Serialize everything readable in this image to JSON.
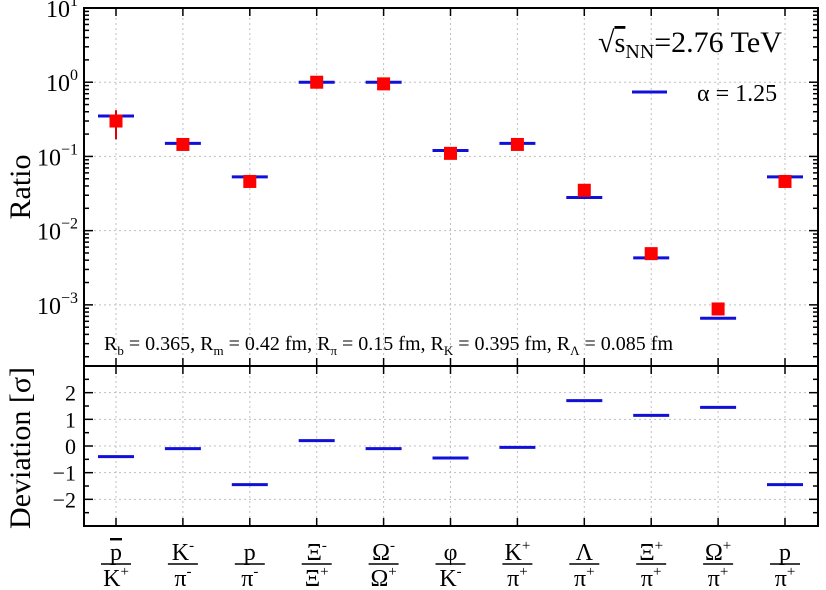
{
  "chart_data": [
    {
      "type": "scatter",
      "panel": "ratio",
      "yscale": "log",
      "ylabel": "Ratio",
      "ylim": [
        0.00015,
        10
      ],
      "yticks": [
        {
          "value": 0.001,
          "base": "10",
          "exp": "−3"
        },
        {
          "value": 0.01,
          "base": "10",
          "exp": "−2"
        },
        {
          "value": 0.1,
          "base": "10",
          "exp": "−1"
        },
        {
          "value": 1,
          "base": "10",
          "exp": "0"
        },
        {
          "value": 10,
          "base": "10",
          "exp": "1"
        }
      ],
      "energy_label": {
        "sqrt": "√",
        "s": "s",
        "sub": "NN",
        "value": "=2.76 TeV"
      },
      "legend": {
        "label": "α = 1.25",
        "color": "#1010d8"
      },
      "parameters": [
        {
          "name": "R",
          "sub": "b",
          "value": " =  0.365, "
        },
        {
          "name": "R",
          "sub": "m",
          "value": " =  0.42 fm, "
        },
        {
          "name": "R",
          "sub": "π",
          "value": " =  0.15 fm, "
        },
        {
          "name": "R",
          "sub": "K",
          "value": " =  0.395 fm, "
        },
        {
          "name": "R",
          "sub": "Λ",
          "value": " =  0.085 fm"
        }
      ],
      "series": [
        {
          "name": "data",
          "color": "#ff0000",
          "values": [
            0.3,
            0.145,
            0.046,
            1.0,
            0.95,
            0.11,
            0.145,
            0.035,
            0.0049,
            0.00088,
            0.046
          ],
          "err_low": [
            0.17,
            0.13,
            0.042,
            0.9,
            0.85,
            0.1,
            0.13,
            0.032,
            0.0045,
            0.0008,
            0.042
          ],
          "err_high": [
            0.42,
            0.16,
            0.05,
            1.1,
            1.05,
            0.12,
            0.16,
            0.038,
            0.0053,
            0.00096,
            0.05
          ]
        },
        {
          "name": "α = 1.25",
          "color": "#1010d8",
          "values": [
            0.35,
            0.15,
            0.053,
            1.0,
            1.0,
            0.12,
            0.15,
            0.028,
            0.0043,
            0.00066,
            0.053
          ]
        }
      ]
    },
    {
      "type": "scatter",
      "panel": "deviation",
      "ylabel": "Deviation [σ]",
      "ylim": [
        -3,
        3
      ],
      "yticks": [
        {
          "value": 2,
          "label": "2"
        },
        {
          "value": 1,
          "label": "1"
        },
        {
          "value": 0,
          "label": "0"
        },
        {
          "value": -1,
          "label": "−1"
        },
        {
          "value": -2,
          "label": "−2"
        }
      ],
      "series": [
        {
          "name": "deviation",
          "color": "#1010d8",
          "values": [
            -0.4,
            -0.1,
            -1.45,
            0.2,
            -0.1,
            -0.45,
            -0.05,
            1.7,
            1.15,
            1.45,
            -1.45
          ]
        }
      ]
    }
  ],
  "categories": [
    {
      "num": "p",
      "num_bar": true,
      "num_sup": "",
      "den": "K",
      "den_sup": "+"
    },
    {
      "num": "K",
      "num_bar": false,
      "num_sup": "-",
      "den": "π",
      "den_sup": "-"
    },
    {
      "num": "p",
      "num_bar": false,
      "num_sup": "",
      "den": "π",
      "den_sup": "-"
    },
    {
      "num": "Ξ",
      "num_bar": false,
      "num_sup": "-",
      "den": "Ξ",
      "den_sup": "+"
    },
    {
      "num": "Ω",
      "num_bar": false,
      "num_sup": "-",
      "den": "Ω",
      "den_sup": "+"
    },
    {
      "num": "φ",
      "num_bar": false,
      "num_sup": "",
      "den": "K",
      "den_sup": "-"
    },
    {
      "num": "K",
      "num_bar": false,
      "num_sup": "+",
      "den": "π",
      "den_sup": "+"
    },
    {
      "num": "Λ",
      "num_bar": false,
      "num_sup": "",
      "den": "π",
      "den_sup": "+"
    },
    {
      "num": "Ξ",
      "num_bar": false,
      "num_sup": "+",
      "den": "π",
      "den_sup": "+"
    },
    {
      "num": "Ω",
      "num_bar": false,
      "num_sup": "+",
      "den": "π",
      "den_sup": "+"
    },
    {
      "num": "p",
      "num_bar": false,
      "num_sup": "",
      "den": "π",
      "den_sup": "+"
    }
  ]
}
